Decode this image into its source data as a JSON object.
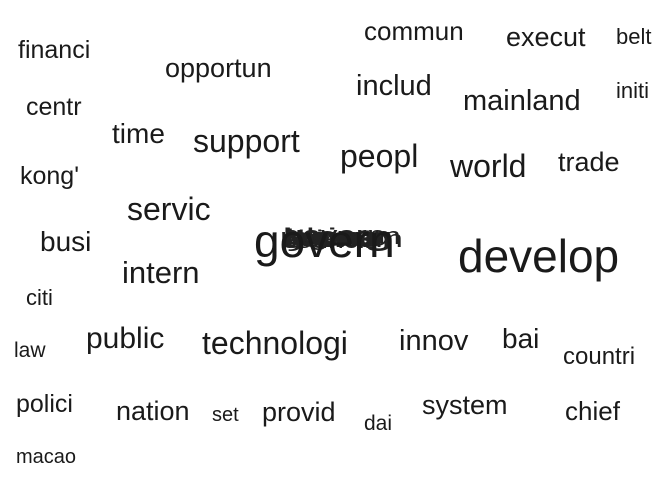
{
  "words": [
    {
      "text": "commun",
      "size": 26
    },
    {
      "text": "execut",
      "size": 27
    },
    {
      "text": "belt",
      "size": 22
    },
    {
      "text": "financi",
      "size": 25
    },
    {
      "text": "opportun",
      "size": 27
    },
    {
      "text": "includ",
      "size": 29
    },
    {
      "text": "initi",
      "size": 22
    },
    {
      "text": "mainland",
      "size": 29
    },
    {
      "text": "centr",
      "size": 25
    },
    {
      "text": "time",
      "size": 28
    },
    {
      "text": "support",
      "size": 32
    },
    {
      "text": "peopl",
      "size": 32
    },
    {
      "text": "world",
      "size": 32
    },
    {
      "text": "trade",
      "size": 27
    },
    {
      "text": "kong'",
      "size": 25
    },
    {
      "text": "servic",
      "size": 32
    },
    {
      "text": "govern",
      "size": 46
    },
    {
      "text": "develop",
      "size": 46
    },
    {
      "text": "busi",
      "size": 28
    },
    {
      "text": "intern",
      "size": 31
    },
    {
      "text": "citi",
      "size": 22
    },
    {
      "text": "law",
      "size": 21
    },
    {
      "text": "public",
      "size": 30
    },
    {
      "text": "technologi",
      "size": 32
    },
    {
      "text": "innov",
      "size": 29
    },
    {
      "text": "bai",
      "size": 28
    },
    {
      "text": "countri",
      "size": 24
    },
    {
      "text": "polici",
      "size": 25
    },
    {
      "text": "nation",
      "size": 27
    },
    {
      "text": "set",
      "size": 20
    },
    {
      "text": "provid",
      "size": 27
    },
    {
      "text": "dai",
      "size": 21
    },
    {
      "text": "system",
      "size": 27
    },
    {
      "text": "chief",
      "size": 26
    },
    {
      "text": "macao",
      "size": 20
    }
  ],
  "overlap_words": [
    "hong",
    "kong",
    "chines",
    "china",
    "econom",
    "econom",
    "region",
    "year",
    "council",
    "govern"
  ]
}
